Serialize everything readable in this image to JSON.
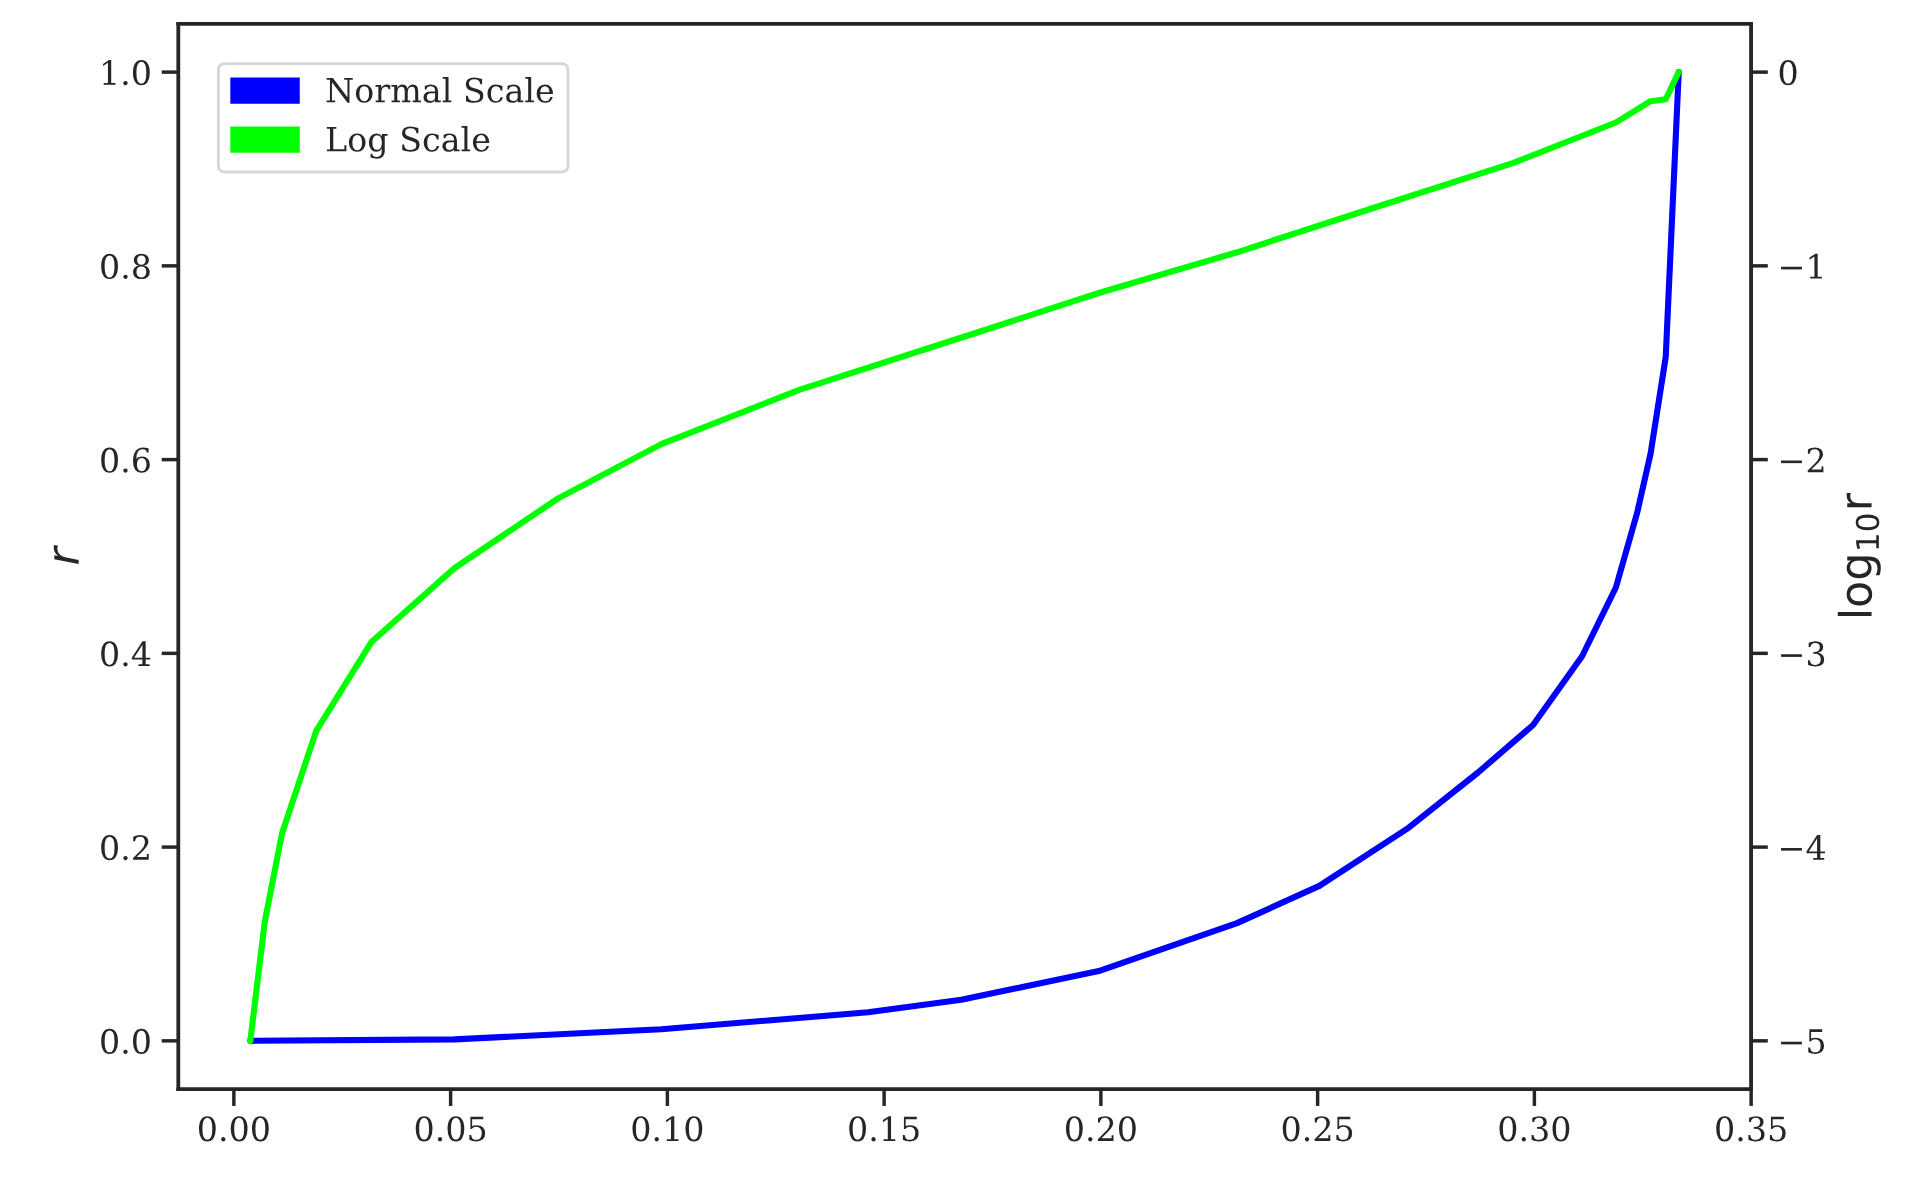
{
  "chart_data": {
    "type": "line",
    "ylabel": "r",
    "y2label": "log$_{10}$r",
    "series": [
      {
        "name": "Normal Scale",
        "color": "#0000ff",
        "x": [
          0.0038,
          0.0509,
          0.0986,
          0.1463,
          0.1678,
          0.1995,
          0.2314,
          0.2504,
          0.271,
          0.287,
          0.2997,
          0.311,
          0.3188,
          0.3237,
          0.3268,
          0.3303,
          0.3333
        ],
        "values": [
          0.0,
          0.0015,
          0.012,
          0.0295,
          0.0424,
          0.072,
          0.1215,
          0.16,
          0.22,
          0.277,
          0.326,
          0.397,
          0.468,
          0.545,
          0.606,
          0.706,
          1.0
        ]
      },
      {
        "name": "Log Scale",
        "color": "#00ff00",
        "axis": "y2",
        "x": [
          0.0038,
          0.0071,
          0.0111,
          0.019,
          0.0318,
          0.0509,
          0.0748,
          0.0986,
          0.1304,
          0.172,
          0.1995,
          0.2314,
          0.263,
          0.295,
          0.3188,
          0.3268,
          0.3303,
          0.3333
        ],
        "values": [
          -5.0,
          -4.39,
          -3.93,
          -3.4,
          -2.94,
          -2.56,
          -2.2,
          -1.92,
          -1.64,
          -1.34,
          -1.14,
          -0.93,
          -0.7,
          -0.47,
          -0.26,
          -0.15,
          -0.14,
          0.0
        ]
      }
    ],
    "xlim": [
      -0.0128,
      0.35
    ],
    "xticks": [
      {
        "value": 0.0,
        "label": "0.00"
      },
      {
        "value": 0.05,
        "label": "0.05"
      },
      {
        "value": 0.1,
        "label": "0.10"
      },
      {
        "value": 0.15,
        "label": "0.15"
      },
      {
        "value": 0.2,
        "label": "0.20"
      },
      {
        "value": 0.25,
        "label": "0.25"
      },
      {
        "value": 0.3,
        "label": "0.30"
      },
      {
        "value": 0.35,
        "label": "0.35"
      }
    ],
    "ylim": [
      -0.05,
      1.05
    ],
    "yticks": [
      {
        "value": 0.0,
        "label": "0.0"
      },
      {
        "value": 0.2,
        "label": "0.2"
      },
      {
        "value": 0.4,
        "label": "0.4"
      },
      {
        "value": 0.6,
        "label": "0.6"
      },
      {
        "value": 0.8,
        "label": "0.8"
      },
      {
        "value": 1.0,
        "label": "1.0"
      }
    ],
    "y2lim": [
      -5.25,
      0.25
    ],
    "y2ticks": [
      {
        "value": -5,
        "label": "−5"
      },
      {
        "value": -4,
        "label": "−4"
      },
      {
        "value": -3,
        "label": "−3"
      },
      {
        "value": -2,
        "label": "−2"
      },
      {
        "value": -1,
        "label": "−1"
      },
      {
        "value": 0,
        "label": "0"
      }
    ],
    "legend": "top left",
    "grid": false,
    "marker": "none",
    "line_style": "solid"
  }
}
